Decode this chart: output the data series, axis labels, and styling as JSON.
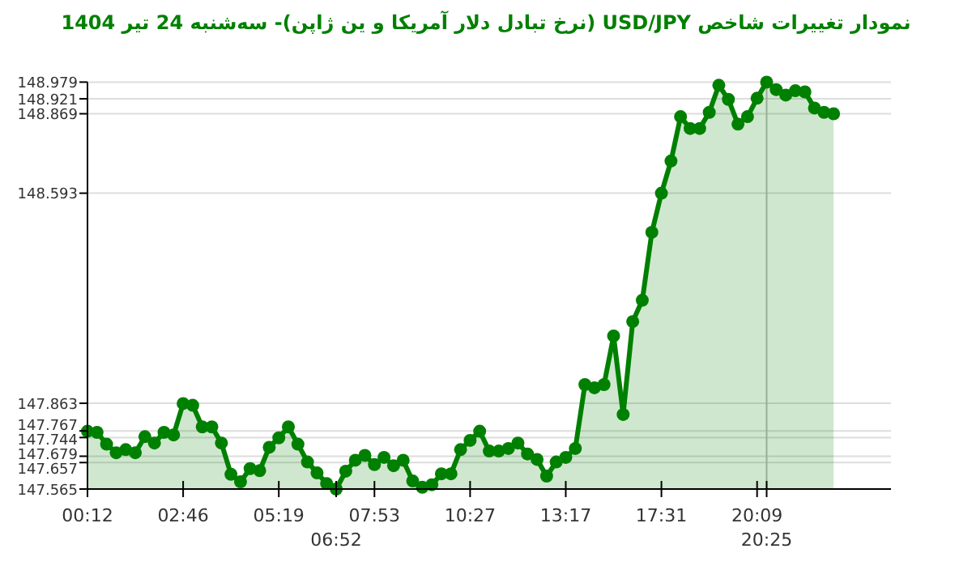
{
  "chart_data": {
    "type": "area",
    "title": "نمودار تغییرات شاخص USD/JPY (نرخ تبادل دلار آمریکا و ین ژاپن)- سه‌شنبه  24 تیر 1404",
    "categories": [
      "00:12",
      null,
      null,
      null,
      null,
      null,
      null,
      null,
      null,
      null,
      "02:46",
      null,
      null,
      null,
      null,
      null,
      null,
      null,
      null,
      null,
      "05:19",
      null,
      null,
      null,
      null,
      null,
      "06:52",
      null,
      null,
      null,
      "07:53",
      null,
      null,
      null,
      null,
      null,
      null,
      null,
      null,
      null,
      "10:27",
      null,
      null,
      null,
      null,
      null,
      null,
      null,
      null,
      null,
      "13:17",
      null,
      null,
      null,
      null,
      null,
      null,
      null,
      null,
      null,
      "17:31",
      null,
      null,
      null,
      null,
      null,
      null,
      null,
      null,
      null,
      "20:09",
      "20:25",
      null,
      null,
      null,
      null,
      null,
      null,
      null,
      null,
      null,
      null,
      null,
      null
    ],
    "series": [
      {
        "color": "#008000",
        "values": [
          147.766,
          147.762,
          147.721,
          147.691,
          147.702,
          147.691,
          147.747,
          147.725,
          147.762,
          147.753,
          147.862,
          147.856,
          147.781,
          147.781,
          147.725,
          147.616,
          147.59,
          147.636,
          147.629,
          147.71,
          147.743,
          147.781,
          147.721,
          147.659,
          147.621,
          147.584,
          147.565,
          147.627,
          147.665,
          147.682,
          147.65,
          147.675,
          147.646,
          147.665,
          147.593,
          147.571,
          147.58,
          147.618,
          147.618,
          147.702,
          147.734,
          147.766,
          147.697,
          147.697,
          147.706,
          147.725,
          147.687,
          147.668,
          147.61,
          147.659,
          147.675,
          147.706,
          147.928,
          147.917,
          147.928,
          148.097,
          147.824,
          148.147,
          148.221,
          148.457,
          148.593,
          148.705,
          148.859,
          148.818,
          148.818,
          148.874,
          148.968,
          148.919,
          148.833,
          148.859,
          148.923,
          148.979,
          148.953,
          148.934,
          148.949,
          148.945,
          148.889,
          148.874,
          148.869,
          null,
          null,
          null,
          null,
          null
        ]
      }
    ],
    "ylim": [
      147.565,
      148.979
    ],
    "yticks": [
      147.565,
      147.657,
      147.679,
      147.744,
      147.767,
      147.863,
      148.593,
      148.869,
      148.921,
      148.979
    ],
    "grid": "y",
    "marker": "circle",
    "ref_lines": [
      {
        "axis": "x",
        "value": "20:25",
        "color": "#bbbbbb"
      }
    ]
  }
}
